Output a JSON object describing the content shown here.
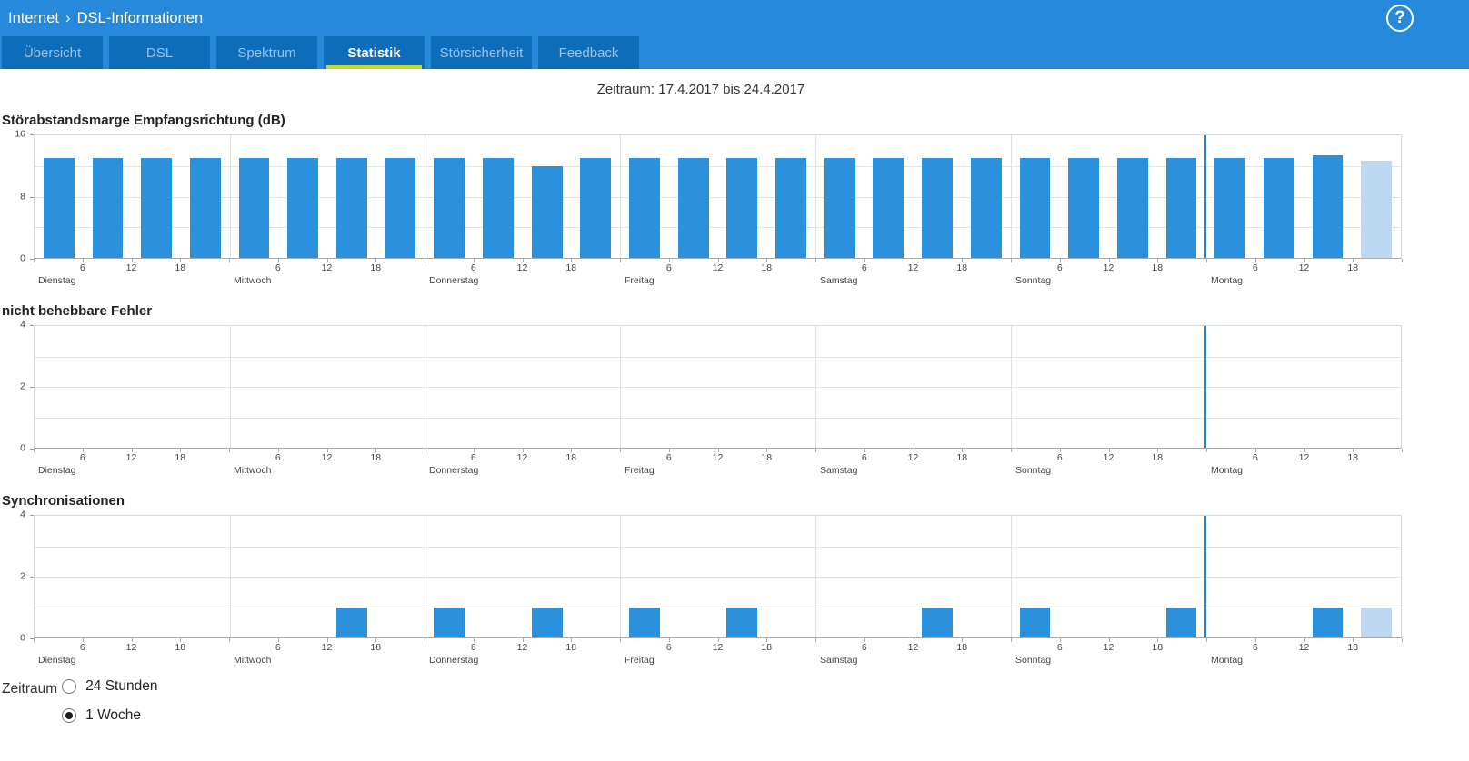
{
  "header": {
    "breadcrumb": {
      "section": "Internet",
      "separator": "›",
      "page": "DSL-Informationen"
    },
    "help_label": "?",
    "tabs": [
      {
        "label": "Übersicht",
        "active": false
      },
      {
        "label": "DSL",
        "active": false
      },
      {
        "label": "Spektrum",
        "active": false
      },
      {
        "label": "Statistik",
        "active": true
      },
      {
        "label": "Störsicherheit",
        "active": false
      },
      {
        "label": "Feedback",
        "active": false
      }
    ]
  },
  "period_label": "Zeitraum: 17.4.2017 bis 24.4.2017",
  "colors": {
    "header_bg": "#2789db",
    "tab_bg": "#0e6dbb",
    "tab_underline": "#c3d930",
    "bar": "#2b91dc",
    "bar_partial": "#bdd9f1",
    "now_line": "#2585c7"
  },
  "chart_data": [
    {
      "type": "bar",
      "title": "Störabstandsmarge Empfangsrichtung (dB)",
      "categories": [
        "Dienstag",
        "Mittwoch",
        "Donnerstag",
        "Freitag",
        "Samstag",
        "Sonntag",
        "Montag"
      ],
      "slots_per_day": 4,
      "slot_hours": 6,
      "hour_ticks": [
        6,
        12,
        18
      ],
      "ylim": [
        0,
        16
      ],
      "ytick_labels": [
        0,
        8,
        16
      ],
      "gridlines": [
        4,
        8,
        12
      ],
      "values": [
        13,
        13,
        13,
        13,
        13,
        13,
        13,
        13,
        13,
        13,
        12,
        13,
        13,
        13,
        13,
        13,
        13,
        13,
        13,
        13,
        13,
        13,
        13,
        13,
        13,
        13,
        13.4,
        12.7
      ],
      "partial_slots": [
        27
      ],
      "now_marker_day": 6,
      "legend": "none"
    },
    {
      "type": "bar",
      "title": "nicht behebbare Fehler",
      "categories": [
        "Dienstag",
        "Mittwoch",
        "Donnerstag",
        "Freitag",
        "Samstag",
        "Sonntag",
        "Montag"
      ],
      "slots_per_day": 4,
      "slot_hours": 6,
      "hour_ticks": [
        6,
        12,
        18
      ],
      "ylim": [
        0,
        4
      ],
      "ytick_labels": [
        0,
        2,
        4
      ],
      "gridlines": [
        1,
        2,
        3
      ],
      "values": [
        0,
        0,
        0,
        0,
        0,
        0,
        0,
        0,
        0,
        0,
        0,
        0,
        0,
        0,
        0,
        0,
        0,
        0,
        0,
        0,
        0,
        0,
        0,
        0,
        0,
        0,
        0,
        0
      ],
      "partial_slots": [],
      "now_marker_day": 6,
      "legend": "none"
    },
    {
      "type": "bar",
      "title": "Synchronisationen",
      "categories": [
        "Dienstag",
        "Mittwoch",
        "Donnerstag",
        "Freitag",
        "Samstag",
        "Sonntag",
        "Montag"
      ],
      "slots_per_day": 4,
      "slot_hours": 6,
      "hour_ticks": [
        6,
        12,
        18
      ],
      "ylim": [
        0,
        4
      ],
      "ytick_labels": [
        0,
        2,
        4
      ],
      "gridlines": [
        1,
        2,
        3
      ],
      "values": [
        0,
        0,
        0,
        0,
        0,
        0,
        1,
        0,
        1,
        0,
        1,
        0,
        1,
        0,
        1,
        0,
        0,
        0,
        1,
        0,
        1,
        0,
        0,
        1,
        0,
        0,
        1,
        1
      ],
      "partial_slots": [
        27
      ],
      "now_marker_day": 6,
      "legend": "none"
    }
  ],
  "controls": {
    "label": "Zeitraum",
    "options": [
      {
        "label": "24 Stunden",
        "selected": false
      },
      {
        "label": "1 Woche",
        "selected": true
      }
    ]
  }
}
